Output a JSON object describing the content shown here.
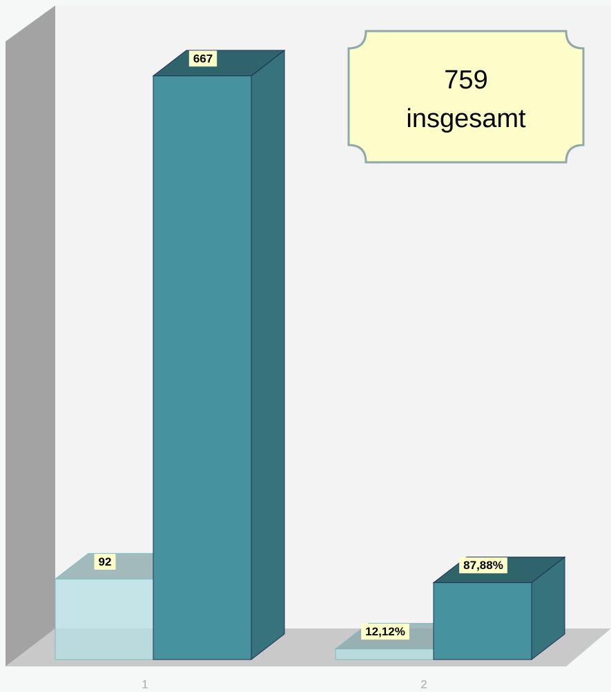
{
  "chart_data": {
    "type": "bar3d",
    "categories": [
      "1",
      "2"
    ],
    "series": [
      {
        "color": "#b5dfe3",
        "values": [
          92,
          12.12
        ],
        "value_labels": [
          "92",
          "12,12%"
        ]
      },
      {
        "color": "#46939f",
        "values": [
          667,
          87.88
        ],
        "value_labels": [
          "667",
          "87,88%"
        ]
      }
    ],
    "ylim": [
      0,
      700
    ],
    "annotation": [
      "759",
      "insgesamt"
    ]
  }
}
